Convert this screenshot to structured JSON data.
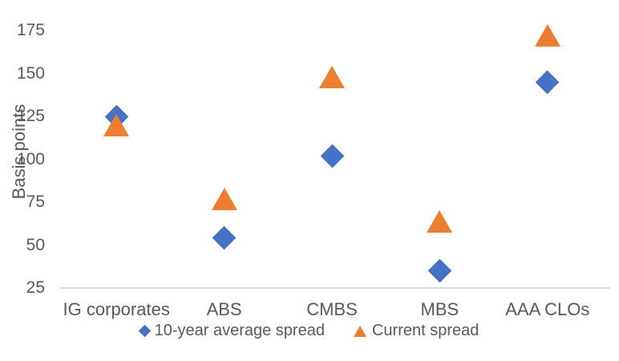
{
  "chart_data": {
    "type": "scatter",
    "title": "",
    "ylabel": "Basis points",
    "xlabel": "",
    "ylim": [
      25,
      175
    ],
    "yticks": [
      175,
      150,
      125,
      100,
      75,
      50,
      25
    ],
    "grid": false,
    "legend_position": "bottom",
    "categories": [
      "IG corporates",
      "ABS",
      "CMBS",
      "MBS",
      "AAA CLOs"
    ],
    "series": [
      {
        "name": "10-year average spread",
        "marker": "diamond",
        "color": "#4472c4",
        "values": [
          125,
          54,
          102,
          35,
          145
        ]
      },
      {
        "name": "Current spread",
        "marker": "triangle",
        "color": "#ed7d31",
        "values": [
          120,
          77,
          148,
          64,
          172
        ]
      }
    ]
  },
  "colors": {
    "axis_line": "#d9d9d9",
    "text": "#595959",
    "background": "#ffffff"
  }
}
